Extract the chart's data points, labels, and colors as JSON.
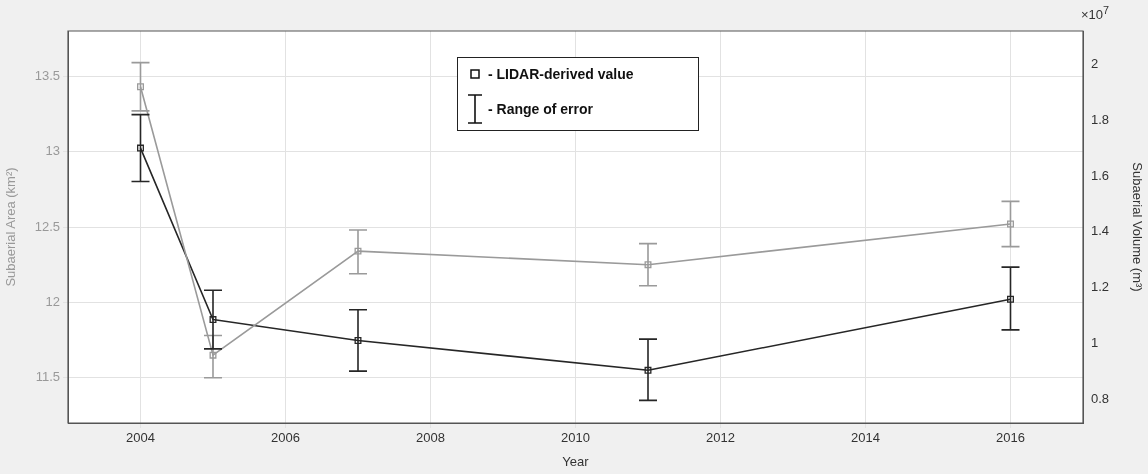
{
  "chart_data": {
    "type": "line",
    "xlabel": "Year",
    "ylabel": "Subaerial Area (km²)",
    "y2label": "Subaerial Volume (m³)",
    "x": [
      2004,
      2005,
      2007,
      2011,
      2016
    ],
    "series": [
      {
        "color": "#9a9a9a",
        "values": [
          13.43,
          11.65,
          12.34,
          12.25,
          12.52
        ],
        "errors": [
          [
            13.27,
            13.59
          ],
          [
            11.5,
            11.78
          ],
          [
            12.19,
            12.48
          ],
          [
            12.11,
            12.39
          ],
          [
            12.37,
            12.67
          ]
        ]
      },
      {
        "color": "#262626",
        "axis": "y2",
        "values": [
          1.7,
          1.085,
          1.01,
          0.903,
          1.158
        ],
        "errors": [
          [
            1.58,
            1.82
          ],
          [
            0.98,
            1.19
          ],
          [
            0.9,
            1.12
          ],
          [
            0.795,
            1.015
          ],
          [
            1.048,
            1.273
          ]
        ]
      }
    ],
    "xlim": [
      2003,
      2017
    ],
    "xticks": [
      2004,
      2006,
      2008,
      2010,
      2012,
      2014,
      2016
    ],
    "ylim": [
      11.2,
      13.8
    ],
    "yticks": [
      11.5,
      12,
      12.5,
      13,
      13.5
    ],
    "y2lim": [
      0.714,
      2.12
    ],
    "y2ticks": [
      0.8,
      1,
      1.2,
      1.4,
      1.6,
      1.8,
      2
    ],
    "grid": true,
    "marker": "square",
    "line_style": "solid",
    "annotations": [
      "- LIDAR-derived value",
      "- Range of error",
      "×10$^{7}$"
    ]
  }
}
